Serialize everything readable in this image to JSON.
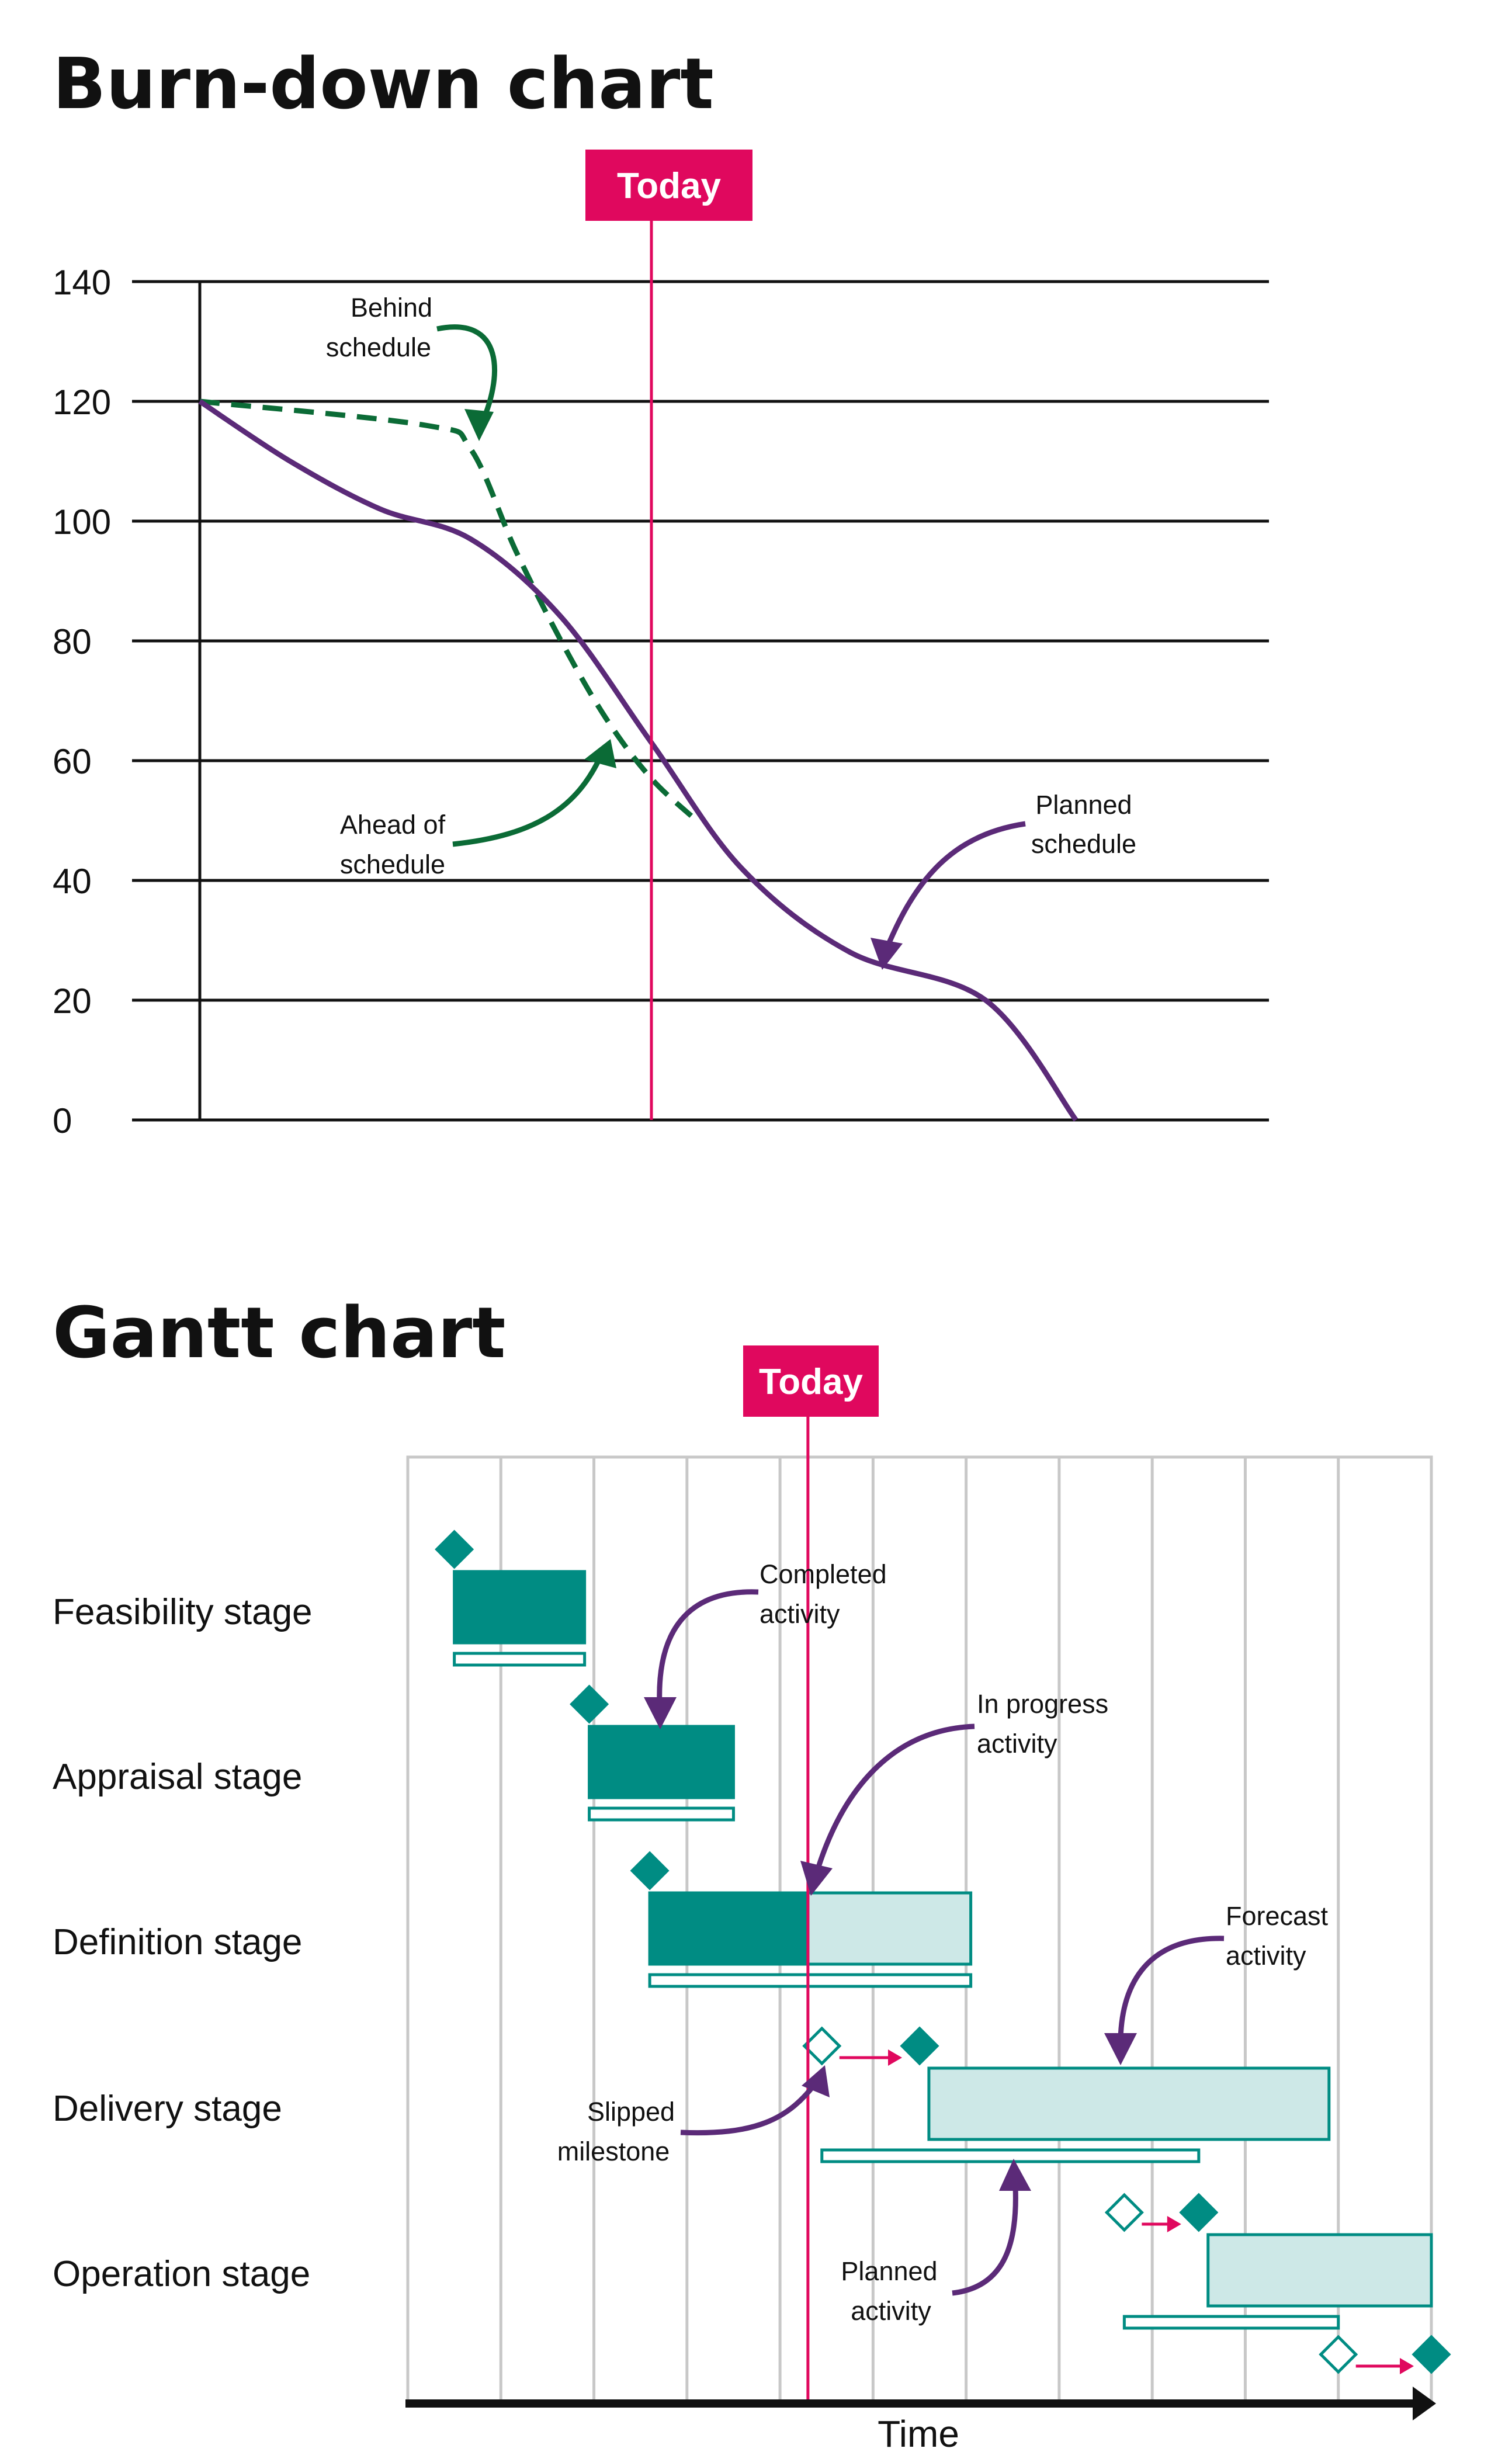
{
  "colors": {
    "today": "#E0085E",
    "planned": "#5B2A78",
    "actual": "#0B6B36",
    "teal": "#008C83",
    "teal_light": "#CDE8E7",
    "grid": "#C8C8C8"
  },
  "chart_data": [
    {
      "type": "line",
      "title": "Burn-down chart",
      "ylim": [
        0,
        140
      ],
      "yticks": [
        0,
        20,
        40,
        60,
        80,
        100,
        120,
        140
      ],
      "grid": true,
      "today_label": "Today",
      "series": [
        {
          "name": "Planned schedule",
          "style": "solid",
          "color": "#5B2A78",
          "points": [
            [
              0,
              120
            ],
            [
              0.1,
              110
            ],
            [
              0.2,
              102
            ],
            [
              0.3,
              97
            ],
            [
              0.4,
              84
            ],
            [
              0.5,
              63
            ],
            [
              0.6,
              42
            ],
            [
              0.72,
              28
            ],
            [
              0.87,
              20
            ],
            [
              0.97,
              0
            ]
          ]
        },
        {
          "name": "",
          "style": "dashed",
          "color": "#0B6B36",
          "points": [
            [
              0,
              120
            ],
            [
              0.25,
              116
            ],
            [
              0.3,
              112
            ],
            [
              0.35,
              95
            ],
            [
              0.4,
              80
            ],
            [
              0.45,
              67
            ],
            [
              0.5,
              57
            ],
            [
              0.55,
              50
            ]
          ]
        }
      ],
      "today_x": 0.5,
      "annotations": [
        "Behind schedule",
        "Ahead of schedule",
        "Planned schedule"
      ],
      "labels": {
        "behind": [
          "Behind",
          "schedule"
        ],
        "ahead": [
          "Ahead of",
          "schedule"
        ],
        "planned": [
          "Planned",
          "schedule"
        ]
      }
    },
    {
      "type": "gantt",
      "title": "Gantt chart",
      "xlabel": "Time",
      "today_label": "Today",
      "today_x": 4.3,
      "x_range": [
        0,
        11
      ],
      "stages": [
        {
          "name": "Feasibility stage",
          "done": [
            0.5,
            1.9
          ],
          "planned": [
            0.5,
            1.9
          ],
          "milestone": 0.5
        },
        {
          "name": "Appraisal stage",
          "done": [
            1.95,
            3.5
          ],
          "planned": [
            1.95,
            3.5
          ],
          "milestone": 1.95
        },
        {
          "name": "Definition stage",
          "done": [
            2.6,
            4.3
          ],
          "remaining": [
            4.3,
            6.05
          ],
          "planned": [
            2.6,
            6.05
          ],
          "milestone": 2.6
        },
        {
          "name": "Delivery stage",
          "forecast": [
            5.6,
            9.9
          ],
          "planned": [
            4.45,
            8.5
          ],
          "slipped_milestone": 4.45,
          "milestone": 5.5
        },
        {
          "name": "Operation stage",
          "forecast": [
            8.6,
            11.0
          ],
          "planned": [
            7.7,
            10.0
          ],
          "slipped_milestone": 7.7,
          "milestone": 8.5,
          "end_slipped": 10.0,
          "end_milestone": 11.0
        }
      ],
      "labels": {
        "completed": [
          "Completed",
          "activity"
        ],
        "in_progress": [
          "In  progress",
          "activity"
        ],
        "forecast": [
          "Forecast",
          "activity"
        ],
        "slipped": [
          "Slipped",
          "milestone"
        ],
        "planned": [
          "Planned",
          "activity"
        ]
      }
    }
  ]
}
